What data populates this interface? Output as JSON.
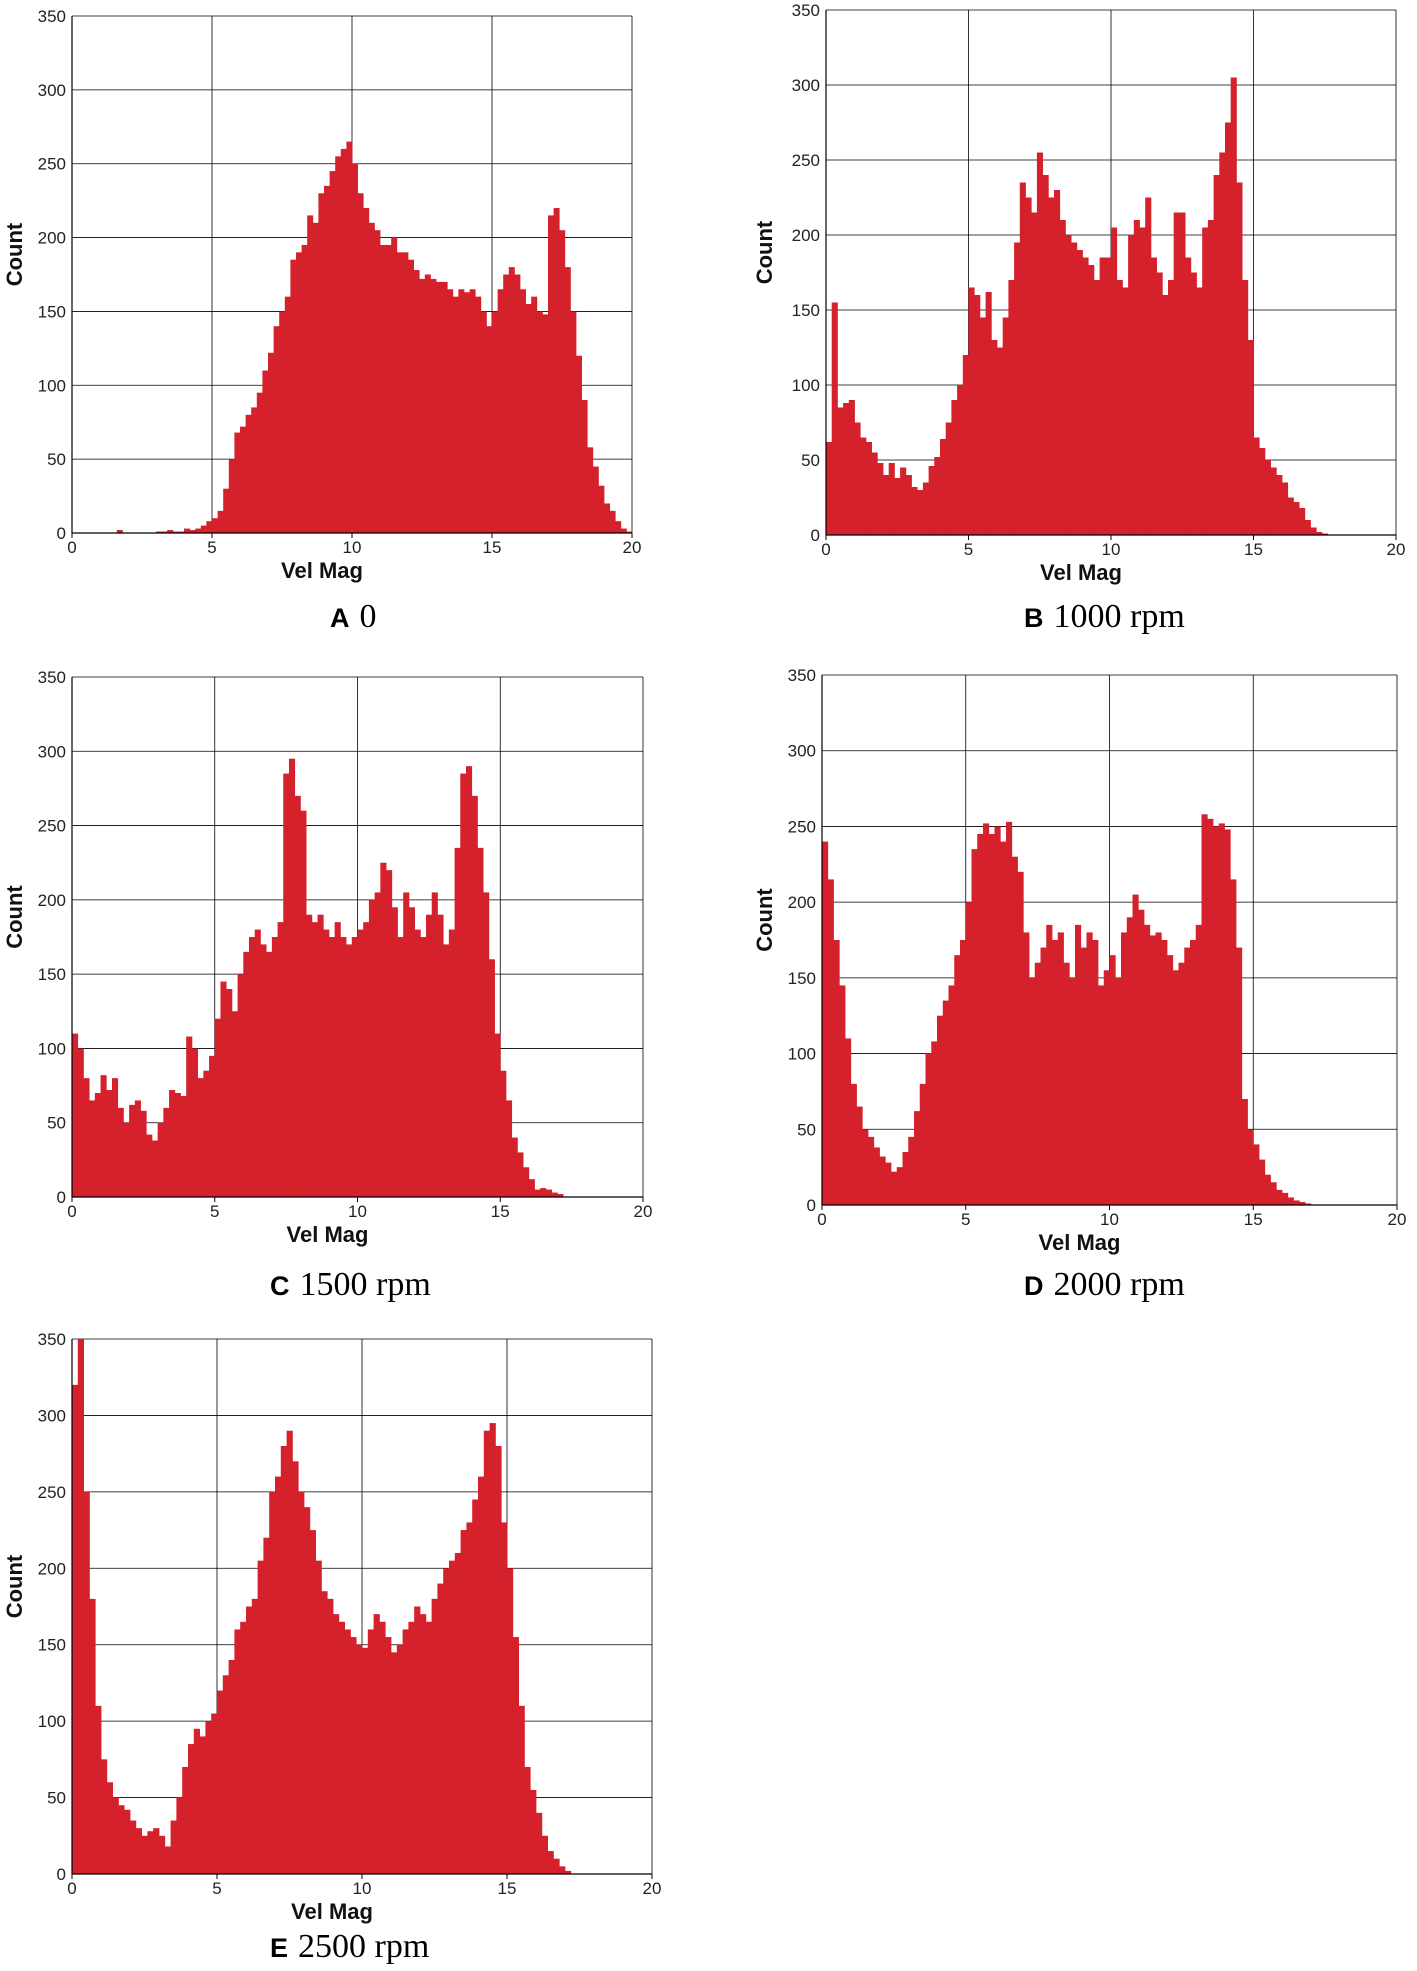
{
  "style": {
    "bar_color": "#d5212b",
    "grid_color": "#000000"
  },
  "chart_data": [
    {
      "type": "bar",
      "panel": "A",
      "condition": "0",
      "xlabel": "Vel Mag",
      "ylabel": "Count",
      "xlim": [
        0,
        20
      ],
      "ylim": [
        0,
        350
      ],
      "xticks": [
        0,
        5,
        10,
        15,
        20
      ],
      "yticks": [
        0,
        50,
        100,
        150,
        200,
        250,
        300,
        350
      ],
      "grid": true,
      "bin_width": 0.2,
      "bin_start": 0,
      "values": [
        0,
        0,
        0,
        0,
        0,
        0,
        0,
        0,
        2,
        0,
        0,
        0,
        0,
        0,
        0,
        1,
        1,
        2,
        1,
        1,
        3,
        2,
        3,
        5,
        8,
        10,
        15,
        30,
        50,
        68,
        72,
        80,
        85,
        95,
        110,
        122,
        140,
        150,
        160,
        185,
        190,
        195,
        215,
        210,
        230,
        235,
        245,
        255,
        260,
        265,
        250,
        230,
        220,
        210,
        205,
        195,
        195,
        200,
        190,
        190,
        185,
        178,
        172,
        175,
        172,
        170,
        170,
        165,
        160,
        165,
        163,
        165,
        160,
        150,
        140,
        150,
        165,
        175,
        180,
        175,
        165,
        155,
        160,
        150,
        148,
        215,
        220,
        205,
        180,
        150,
        120,
        90,
        58,
        45,
        32,
        20,
        15,
        8,
        3,
        1,
        0
      ]
    },
    {
      "type": "bar",
      "panel": "B",
      "condition": "1000 rpm",
      "xlabel": "Vel Mag",
      "ylabel": "Count",
      "xlim": [
        0,
        20
      ],
      "ylim": [
        0,
        350
      ],
      "xticks": [
        0,
        5,
        10,
        15,
        20
      ],
      "yticks": [
        0,
        50,
        100,
        150,
        200,
        250,
        300,
        350
      ],
      "grid": true,
      "bin_width": 0.2,
      "bin_start": 0,
      "values": [
        62,
        155,
        85,
        88,
        90,
        75,
        65,
        62,
        55,
        48,
        40,
        48,
        38,
        45,
        40,
        32,
        30,
        35,
        46,
        52,
        64,
        75,
        90,
        100,
        120,
        165,
        160,
        145,
        162,
        130,
        125,
        145,
        170,
        195,
        235,
        225,
        215,
        255,
        240,
        225,
        230,
        210,
        200,
        195,
        190,
        185,
        180,
        170,
        185,
        185,
        205,
        170,
        165,
        200,
        210,
        205,
        225,
        185,
        175,
        160,
        170,
        215,
        215,
        185,
        175,
        165,
        205,
        210,
        240,
        255,
        275,
        305,
        235,
        170,
        130,
        65,
        58,
        50,
        45,
        40,
        35,
        25,
        22,
        18,
        10,
        5,
        2,
        1,
        0,
        0,
        0
      ]
    },
    {
      "type": "bar",
      "panel": "C",
      "condition": "1500 rpm",
      "xlabel": "Vel Mag",
      "ylabel": "Count",
      "xlim": [
        0,
        20
      ],
      "ylim": [
        0,
        350
      ],
      "xticks": [
        0,
        5,
        10,
        15,
        20
      ],
      "yticks": [
        0,
        50,
        100,
        150,
        200,
        250,
        300,
        350
      ],
      "grid": true,
      "bin_width": 0.2,
      "bin_start": 0,
      "values": [
        110,
        100,
        80,
        65,
        70,
        82,
        72,
        80,
        60,
        50,
        62,
        65,
        58,
        42,
        38,
        50,
        60,
        72,
        70,
        68,
        108,
        100,
        80,
        85,
        95,
        120,
        145,
        140,
        125,
        150,
        165,
        175,
        180,
        170,
        165,
        175,
        185,
        285,
        295,
        270,
        260,
        190,
        185,
        190,
        180,
        175,
        185,
        175,
        170,
        175,
        180,
        185,
        200,
        205,
        225,
        220,
        195,
        175,
        205,
        195,
        180,
        175,
        190,
        205,
        190,
        170,
        180,
        235,
        285,
        290,
        270,
        235,
        205,
        160,
        110,
        85,
        65,
        40,
        30,
        20,
        12,
        5,
        6,
        5,
        3,
        2,
        0,
        0,
        0
      ]
    },
    {
      "type": "bar",
      "panel": "D",
      "condition": "2000 rpm",
      "xlabel": "Vel Mag",
      "ylabel": "Count",
      "xlim": [
        0,
        20
      ],
      "ylim": [
        0,
        350
      ],
      "xticks": [
        0,
        5,
        10,
        15,
        20
      ],
      "yticks": [
        0,
        50,
        100,
        150,
        200,
        250,
        300,
        350
      ],
      "grid": true,
      "bin_width": 0.2,
      "bin_start": 0,
      "values": [
        240,
        215,
        175,
        145,
        110,
        80,
        65,
        50,
        45,
        38,
        32,
        28,
        22,
        25,
        35,
        45,
        62,
        80,
        100,
        108,
        125,
        135,
        145,
        165,
        175,
        200,
        235,
        245,
        252,
        245,
        250,
        240,
        253,
        230,
        220,
        180,
        150,
        160,
        170,
        185,
        175,
        180,
        160,
        150,
        185,
        170,
        180,
        175,
        145,
        155,
        165,
        150,
        180,
        190,
        205,
        195,
        185,
        178,
        180,
        175,
        165,
        155,
        160,
        170,
        175,
        185,
        258,
        255,
        250,
        252,
        248,
        215,
        170,
        70,
        50,
        40,
        30,
        20,
        15,
        10,
        8,
        5,
        3,
        2,
        1,
        0,
        0,
        0,
        0,
        0
      ]
    },
    {
      "type": "bar",
      "panel": "E",
      "condition": "2500 rpm",
      "xlabel": "Vel Mag",
      "ylabel": "Count",
      "xlim": [
        0,
        20
      ],
      "ylim": [
        0,
        350
      ],
      "xticks": [
        0,
        5,
        10,
        15,
        20
      ],
      "yticks": [
        0,
        50,
        100,
        150,
        200,
        250,
        300,
        350
      ],
      "grid": true,
      "bin_width": 0.2,
      "bin_start": 0,
      "values": [
        320,
        350,
        250,
        180,
        110,
        75,
        60,
        50,
        45,
        42,
        35,
        30,
        25,
        28,
        30,
        25,
        18,
        35,
        50,
        70,
        85,
        95,
        90,
        100,
        105,
        120,
        130,
        140,
        160,
        165,
        175,
        180,
        205,
        220,
        250,
        260,
        280,
        290,
        270,
        250,
        240,
        225,
        205,
        185,
        180,
        170,
        165,
        160,
        155,
        150,
        148,
        160,
        170,
        165,
        155,
        145,
        150,
        160,
        165,
        175,
        170,
        165,
        180,
        190,
        200,
        205,
        210,
        225,
        230,
        245,
        260,
        290,
        295,
        280,
        230,
        200,
        155,
        110,
        70,
        55,
        40,
        25,
        15,
        10,
        5,
        2,
        0,
        0,
        0
      ]
    }
  ]
}
